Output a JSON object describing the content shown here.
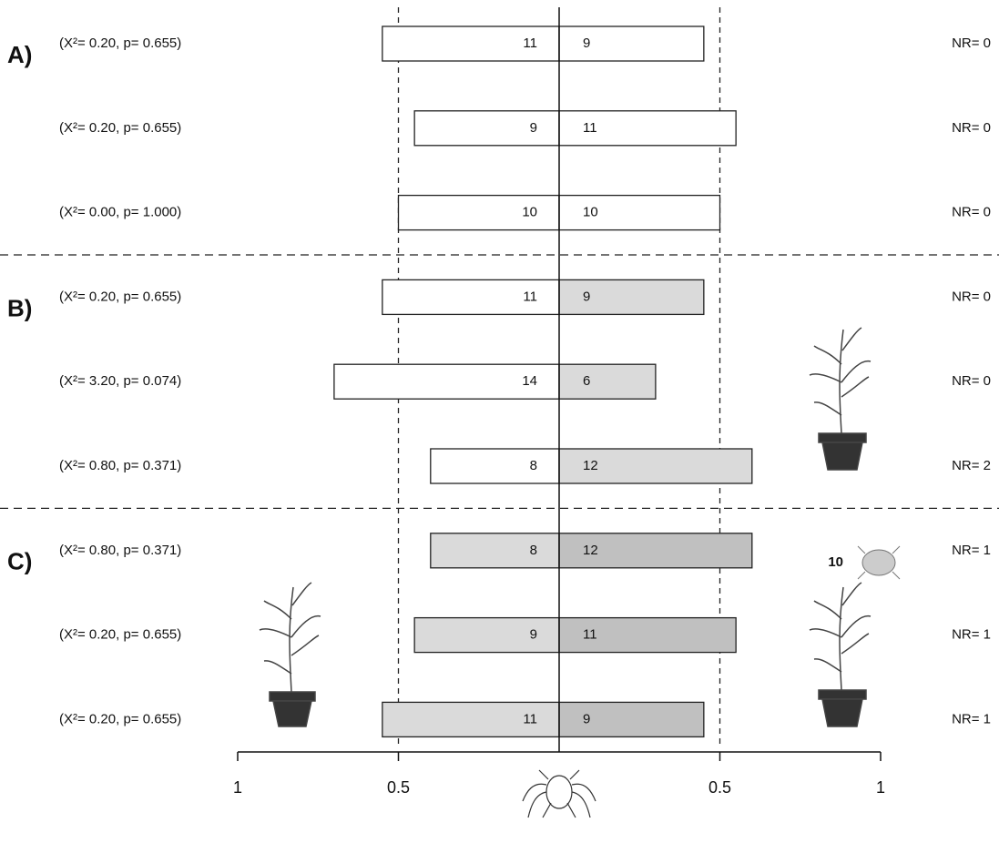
{
  "chart_data": {
    "type": "bar",
    "orientation": "horizontal",
    "categories": [
      "(X²= 0.20, p= 0.655)",
      "(X²= 0.20, p= 0.655)",
      "(X²= 0.00, p= 1.000)",
      "(X²= 0.20, p= 0.655)",
      "(X²= 3.20, p= 0.074)",
      "(X²= 0.80, p= 0.371)",
      "(X²= 0.80, p= 0.371)",
      "(X²= 0.20, p= 0.655)",
      "(X²= 0.20, p= 0.655)"
    ],
    "nr_labels": [
      "NR= 0",
      "NR= 0",
      "NR= 0",
      "NR= 0",
      "NR= 0",
      "NR= 2",
      "NR= 1",
      "NR= 1",
      "NR= 1"
    ],
    "group_labels": [
      "A)",
      "B)",
      "C)"
    ],
    "series": [
      {
        "values": [
          -11,
          -9,
          -10,
          -11,
          -14,
          -8,
          -8,
          -9,
          -11
        ],
        "value_labels": [
          "11",
          "9",
          "10",
          "11",
          "14",
          "8",
          "8",
          "9",
          "11"
        ],
        "colors": [
          "#ffffff",
          "#ffffff",
          "#ffffff",
          "#ffffff",
          "#ffffff",
          "#ffffff",
          "#dadada",
          "#dadada",
          "#dadada"
        ]
      },
      {
        "values": [
          9,
          11,
          10,
          9,
          6,
          12,
          12,
          11,
          9
        ],
        "colors": [
          "#ffffff",
          "#ffffff",
          "#ffffff",
          "#dadada",
          "#dadada",
          "#dadada",
          "#c0c0c0",
          "#c0c0c0",
          "#c0c0c0"
        ]
      }
    ],
    "xlim": [
      -20,
      20
    ],
    "xticks": [
      {
        "value": -20,
        "label": "1"
      },
      {
        "value": -10,
        "label": "0.5"
      },
      {
        "value": 10,
        "label": "0.5"
      },
      {
        "value": 20,
        "label": "1"
      }
    ],
    "reference_lines": [
      -10,
      10
    ],
    "annotations": [
      "10"
    ]
  }
}
